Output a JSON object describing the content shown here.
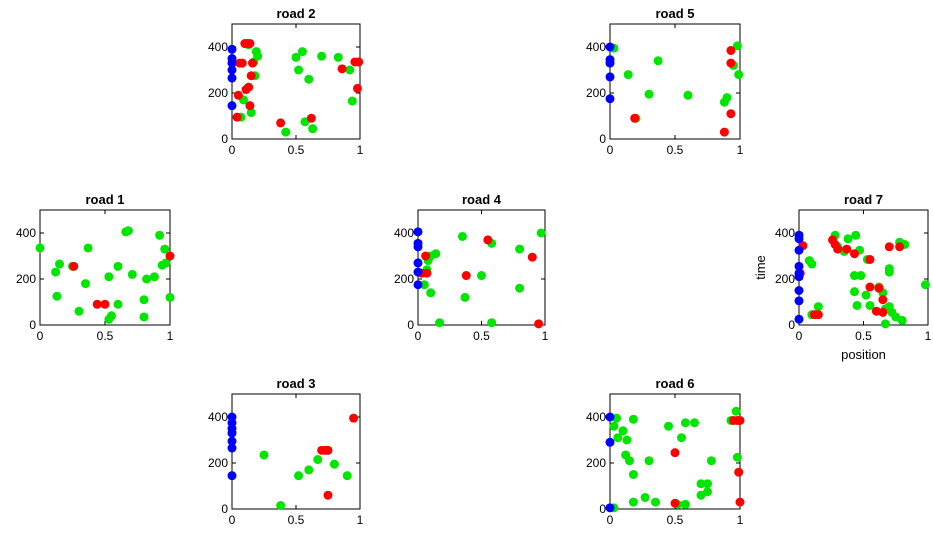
{
  "colors": {
    "blue": "#0000ff",
    "red": "#ff0000",
    "green": "#00e600"
  },
  "chart_data": [
    {
      "type": "scatter",
      "title": "road 2",
      "xlabel": "",
      "ylabel": "",
      "xlim": [
        0,
        1
      ],
      "ylim": [
        0,
        500
      ],
      "xticks": [
        "0",
        "0.5",
        "1"
      ],
      "yticks": [
        "0",
        "200",
        "400"
      ],
      "series": [
        {
          "color": "blue",
          "points": [
            [
              0,
              390
            ],
            [
              0,
              350
            ],
            [
              0,
              330
            ],
            [
              0,
              300
            ],
            [
              0,
              265
            ],
            [
              0,
              145
            ]
          ]
        },
        {
          "color": "red",
          "points": [
            [
              0.1,
              415
            ],
            [
              0.12,
              415
            ],
            [
              0.14,
              415
            ],
            [
              0.06,
              330
            ],
            [
              0.08,
              330
            ],
            [
              0.16,
              330
            ],
            [
              0.15,
              275
            ],
            [
              0.13,
              225
            ],
            [
              0.11,
              215
            ],
            [
              0.05,
              190
            ],
            [
              0.14,
              145
            ],
            [
              0.04,
              95
            ],
            [
              0.38,
              70
            ],
            [
              0.62,
              90
            ],
            [
              0.86,
              305
            ],
            [
              0.96,
              335
            ],
            [
              0.99,
              335
            ],
            [
              0.98,
              220
            ]
          ]
        },
        {
          "color": "green",
          "points": [
            [
              0.13,
              410
            ],
            [
              0.19,
              380
            ],
            [
              0.2,
              360
            ],
            [
              0.17,
              335
            ],
            [
              0.55,
              380
            ],
            [
              0.7,
              360
            ],
            [
              0.5,
              355
            ],
            [
              0.83,
              355
            ],
            [
              0.52,
              300
            ],
            [
              0.6,
              260
            ],
            [
              0.92,
              300
            ],
            [
              0.18,
              275
            ],
            [
              0.13,
              225
            ],
            [
              0.09,
              170
            ],
            [
              0.15,
              115
            ],
            [
              0.07,
              95
            ],
            [
              0.42,
              30
            ],
            [
              0.63,
              45
            ],
            [
              0.57,
              75
            ],
            [
              0.94,
              165
            ]
          ]
        }
      ]
    },
    {
      "type": "scatter",
      "title": "road 5",
      "xlabel": "",
      "ylabel": "",
      "xlim": [
        0,
        1
      ],
      "ylim": [
        0,
        500
      ],
      "xticks": [
        "0",
        "0.5",
        "1"
      ],
      "yticks": [
        "0",
        "200",
        "400"
      ],
      "series": [
        {
          "color": "blue",
          "points": [
            [
              0,
              400
            ],
            [
              0,
              345
            ],
            [
              0,
              330
            ],
            [
              0,
              270
            ],
            [
              0,
              175
            ]
          ]
        },
        {
          "color": "red",
          "points": [
            [
              0.93,
              385
            ],
            [
              0.93,
              330
            ],
            [
              0.93,
              110
            ],
            [
              0.19,
              90
            ],
            [
              0.88,
              30
            ]
          ]
        },
        {
          "color": "green",
          "points": [
            [
              0.03,
              395
            ],
            [
              0.98,
              405
            ],
            [
              0.95,
              320
            ],
            [
              0.99,
              280
            ],
            [
              0.14,
              280
            ],
            [
              0.37,
              340
            ],
            [
              0.3,
              195
            ],
            [
              0.6,
              190
            ],
            [
              0.9,
              180
            ],
            [
              0.88,
              160
            ],
            [
              0.2,
              90
            ]
          ]
        }
      ]
    },
    {
      "type": "scatter",
      "title": "road 1",
      "xlabel": "",
      "ylabel": "",
      "xlim": [
        0,
        1
      ],
      "ylim": [
        0,
        500
      ],
      "xticks": [
        "0",
        "0.5",
        "1"
      ],
      "yticks": [
        "0",
        "200",
        "400"
      ],
      "series": [
        {
          "color": "blue",
          "points": []
        },
        {
          "color": "red",
          "points": [
            [
              0.26,
              255
            ],
            [
              0.44,
              90
            ],
            [
              0.5,
              90
            ],
            [
              1,
              300
            ]
          ]
        },
        {
          "color": "green",
          "points": [
            [
              0,
              335
            ],
            [
              0.15,
              265
            ],
            [
              0.25,
              255
            ],
            [
              0.37,
              335
            ],
            [
              0.66,
              405
            ],
            [
              0.68,
              410
            ],
            [
              0.92,
              390
            ],
            [
              0.96,
              330
            ],
            [
              0.97,
              270
            ],
            [
              0.94,
              260
            ],
            [
              0.6,
              255
            ],
            [
              0.53,
              210
            ],
            [
              0.71,
              220
            ],
            [
              0.82,
              200
            ],
            [
              0.88,
              210
            ],
            [
              0.12,
              230
            ],
            [
              0.35,
              180
            ],
            [
              0.13,
              125
            ],
            [
              0.6,
              90
            ],
            [
              0.8,
              110
            ],
            [
              1,
              120
            ],
            [
              0.3,
              60
            ],
            [
              0.55,
              40
            ],
            [
              0.53,
              25
            ],
            [
              0.8,
              35
            ]
          ]
        }
      ]
    },
    {
      "type": "scatter",
      "title": "road 4",
      "xlabel": "",
      "ylabel": "",
      "xlim": [
        0,
        1
      ],
      "ylim": [
        0,
        500
      ],
      "xticks": [
        "0",
        "0.5",
        "1"
      ],
      "yticks": [
        "0",
        "200",
        "400"
      ],
      "series": [
        {
          "color": "blue",
          "points": [
            [
              0,
              405
            ],
            [
              0,
              355
            ],
            [
              0,
              340
            ],
            [
              0,
              270
            ],
            [
              0,
              230
            ],
            [
              0,
              175
            ]
          ]
        },
        {
          "color": "red",
          "points": [
            [
              0.06,
              300
            ],
            [
              0.03,
              225
            ],
            [
              0.07,
              225
            ],
            [
              0.38,
              215
            ],
            [
              0.55,
              370
            ],
            [
              0.9,
              295
            ],
            [
              0.95,
              5
            ]
          ]
        },
        {
          "color": "green",
          "points": [
            [
              0.35,
              385
            ],
            [
              0.58,
              355
            ],
            [
              0.8,
              330
            ],
            [
              0.97,
              400
            ],
            [
              0.14,
              310
            ],
            [
              0.1,
              300
            ],
            [
              0.08,
              280
            ],
            [
              0.07,
              240
            ],
            [
              0.5,
              215
            ],
            [
              0.05,
              175
            ],
            [
              0.1,
              140
            ],
            [
              0.37,
              120
            ],
            [
              0.8,
              160
            ],
            [
              0.17,
              10
            ],
            [
              0.58,
              10
            ]
          ]
        }
      ]
    },
    {
      "type": "scatter",
      "title": "road 7",
      "xlabel": "position",
      "ylabel": "time",
      "xlim": [
        0,
        1
      ],
      "ylim": [
        0,
        500
      ],
      "xticks": [
        "0",
        "0.5",
        "1"
      ],
      "yticks": [
        "0",
        "200",
        "400"
      ],
      "series": [
        {
          "color": "blue",
          "points": [
            [
              0,
              390
            ],
            [
              0,
              375
            ],
            [
              0,
              325
            ],
            [
              0,
              255
            ],
            [
              0,
              225
            ],
            [
              0,
              210
            ],
            [
              0,
              150
            ],
            [
              0,
              105
            ],
            [
              0,
              25
            ]
          ]
        },
        {
          "color": "red",
          "points": [
            [
              0.03,
              345
            ],
            [
              0.01,
              225
            ],
            [
              0.26,
              370
            ],
            [
              0.28,
              350
            ],
            [
              0.3,
              330
            ],
            [
              0.37,
              330
            ],
            [
              0.43,
              310
            ],
            [
              0.55,
              285
            ],
            [
              0.7,
              340
            ],
            [
              0.78,
              340
            ],
            [
              0.55,
              165
            ],
            [
              0.62,
              160
            ],
            [
              0.65,
              110
            ],
            [
              0.6,
              60
            ],
            [
              0.65,
              55
            ],
            [
              0.12,
              45
            ],
            [
              0.15,
              45
            ]
          ]
        },
        {
          "color": "green",
          "points": [
            [
              0.28,
              390
            ],
            [
              0.38,
              375
            ],
            [
              0.44,
              390
            ],
            [
              0.78,
              360
            ],
            [
              0.82,
              350
            ],
            [
              0.3,
              340
            ],
            [
              0.35,
              320
            ],
            [
              0.47,
              325
            ],
            [
              0.53,
              285
            ],
            [
              0.08,
              280
            ],
            [
              0.1,
              265
            ],
            [
              0.43,
              215
            ],
            [
              0.48,
              215
            ],
            [
              0.7,
              245
            ],
            [
              0.7,
              230
            ],
            [
              0.62,
              165
            ],
            [
              0.65,
              140
            ],
            [
              0.43,
              145
            ],
            [
              0.52,
              130
            ],
            [
              0.98,
              175
            ],
            [
              0.15,
              80
            ],
            [
              0.45,
              85
            ],
            [
              0.55,
              85
            ],
            [
              0.7,
              80
            ],
            [
              0.67,
              70
            ],
            [
              0.72,
              55
            ],
            [
              0.75,
              35
            ],
            [
              0.8,
              20
            ],
            [
              0.67,
              5
            ],
            [
              0.1,
              45
            ]
          ]
        }
      ]
    },
    {
      "type": "scatter",
      "title": "road 3",
      "xlabel": "",
      "ylabel": "",
      "xlim": [
        0,
        1
      ],
      "ylim": [
        0,
        500
      ],
      "xticks": [
        "0",
        "0.5",
        "1"
      ],
      "yticks": [
        "0",
        "200",
        "400"
      ],
      "series": [
        {
          "color": "blue",
          "points": [
            [
              0,
              400
            ],
            [
              0,
              375
            ],
            [
              0,
              350
            ],
            [
              0,
              330
            ],
            [
              0,
              295
            ],
            [
              0,
              265
            ],
            [
              0,
              145
            ]
          ]
        },
        {
          "color": "red",
          "points": [
            [
              0.7,
              255
            ],
            [
              0.73,
              255
            ],
            [
              0.75,
              255
            ],
            [
              0.75,
              60
            ],
            [
              0.95,
              395
            ]
          ]
        },
        {
          "color": "green",
          "points": [
            [
              0.25,
              235
            ],
            [
              0.52,
              145
            ],
            [
              0.6,
              170
            ],
            [
              0.67,
              215
            ],
            [
              0.8,
              195
            ],
            [
              0.9,
              145
            ],
            [
              0.38,
              15
            ]
          ]
        }
      ]
    },
    {
      "type": "scatter",
      "title": "road 6",
      "xlabel": "",
      "ylabel": "",
      "xlim": [
        0,
        1
      ],
      "ylim": [
        0,
        500
      ],
      "xticks": [
        "0",
        "0.5",
        "1"
      ],
      "yticks": [
        "0",
        "200",
        "400"
      ],
      "series": [
        {
          "color": "blue",
          "points": [
            [
              0,
              400
            ],
            [
              0,
              290
            ],
            [
              0,
              5
            ]
          ]
        },
        {
          "color": "red",
          "points": [
            [
              0.95,
              385
            ],
            [
              0.98,
              385
            ],
            [
              1,
              385
            ],
            [
              0.5,
              245
            ],
            [
              0.99,
              160
            ],
            [
              0.5,
              25
            ],
            [
              1,
              30
            ]
          ]
        },
        {
          "color": "green",
          "points": [
            [
              0.05,
              395
            ],
            [
              0.18,
              390
            ],
            [
              0.45,
              360
            ],
            [
              0.58,
              375
            ],
            [
              0.65,
              375
            ],
            [
              0.93,
              385
            ],
            [
              0.97,
              425
            ],
            [
              0.03,
              360
            ],
            [
              0.1,
              340
            ],
            [
              0.06,
              310
            ],
            [
              0.13,
              300
            ],
            [
              0.55,
              310
            ],
            [
              0.15,
              210
            ],
            [
              0.3,
              210
            ],
            [
              0.12,
              235
            ],
            [
              0.98,
              225
            ],
            [
              0.78,
              210
            ],
            [
              0.18,
              150
            ],
            [
              0.7,
              110
            ],
            [
              0.75,
              110
            ],
            [
              0.75,
              75
            ],
            [
              0.7,
              60
            ],
            [
              0.27,
              50
            ],
            [
              0.18,
              30
            ],
            [
              0.35,
              30
            ],
            [
              0.52,
              20
            ],
            [
              0.58,
              20
            ],
            [
              0.03,
              5
            ]
          ]
        }
      ]
    }
  ]
}
